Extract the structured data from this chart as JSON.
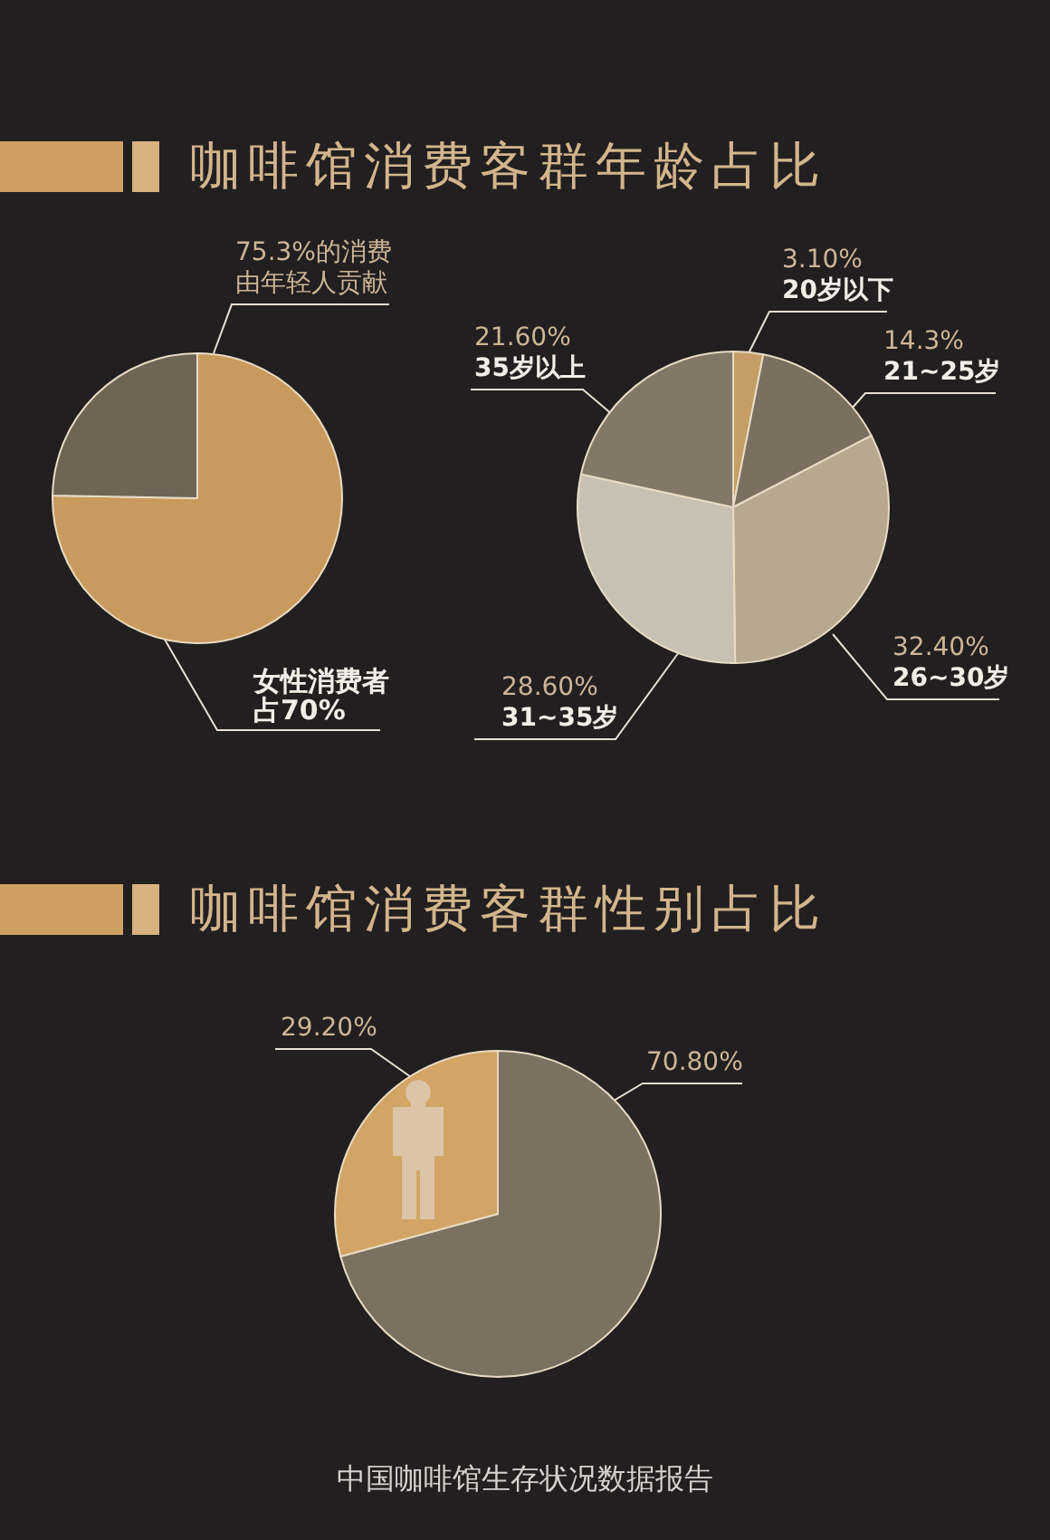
{
  "chart_data": [
    {
      "type": "pie",
      "title": "咖啡馆消费客群年龄占比",
      "categories": [
        null,
        null
      ],
      "values": [
        75.3,
        24.7
      ],
      "colors": [
        "#c99a5d",
        "#6e6557"
      ],
      "value_labels": [
        "75.3%的消费由年轻人贡献",
        null
      ],
      "annotations": [
        "女性消费者占70%"
      ]
    },
    {
      "type": "pie",
      "categories": [
        "20岁以下",
        "21~25岁",
        "26~30岁",
        "31~35岁",
        "35岁以上"
      ],
      "values": [
        3.1,
        14.3,
        32.4,
        28.6,
        21.6
      ],
      "colors": [
        "#c59d66",
        "#7a6f60",
        "#b7a98f",
        "#c8c0b3",
        "#837868"
      ],
      "value_labels": [
        "3.10%",
        "14.3%",
        "32.40%",
        "28.60%",
        "21.60%"
      ]
    },
    {
      "type": "pie",
      "title": "咖啡馆消费客群性别占比",
      "categories": [
        null,
        null
      ],
      "values": [
        70.8,
        29.2
      ],
      "colors": [
        "#7a7163",
        "#d2a465"
      ],
      "value_labels": [
        "70.80%",
        "29.20%"
      ],
      "annotations": [
        "中国咖啡馆生存状况数据报告"
      ]
    }
  ]
}
